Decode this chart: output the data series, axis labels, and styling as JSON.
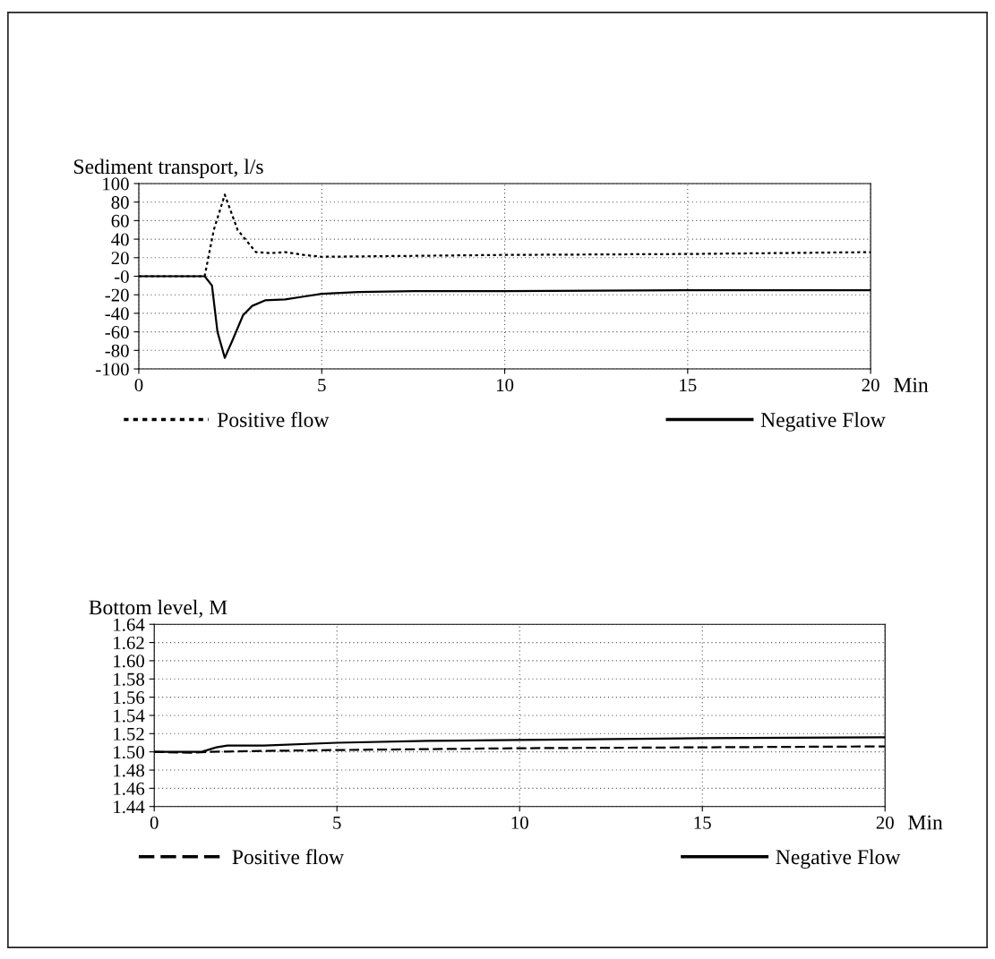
{
  "chart_data": [
    {
      "type": "line",
      "title": "Sediment transport, l/s",
      "xlabel": "Min",
      "xlim": [
        0,
        20
      ],
      "xticks": [
        0,
        5,
        10,
        15,
        20
      ],
      "ylim": [
        -100,
        100
      ],
      "yticks": [
        -100,
        -80,
        -60,
        -40,
        -20,
        {
          "value": 0,
          "label": "-0"
        },
        20,
        40,
        60,
        80,
        100
      ],
      "grid": true,
      "legend": "bottom",
      "series": [
        {
          "name": "Positive flow",
          "color": "#000000",
          "line_style": "dotted",
          "x": [
            0,
            1.8,
            2.05,
            2.35,
            2.7,
            3.2,
            3.6,
            4.0,
            4.5,
            5.0,
            7.5,
            10,
            15,
            20
          ],
          "values": [
            0,
            0,
            50,
            88,
            50,
            26,
            25,
            26,
            23,
            21,
            22,
            23,
            24,
            26
          ]
        },
        {
          "name": "Negative Flow",
          "color": "#000000",
          "line_style": "solid",
          "x": [
            0,
            1.8,
            2.0,
            2.15,
            2.35,
            2.55,
            2.85,
            3.1,
            3.45,
            4.0,
            4.5,
            5.0,
            6.0,
            7.5,
            10,
            15,
            20
          ],
          "values": [
            0,
            0,
            -10,
            -60,
            -88,
            -70,
            -42,
            -32,
            -26,
            -25,
            -22,
            -19,
            -17,
            -16,
            -16,
            -15,
            -15
          ]
        }
      ]
    },
    {
      "type": "line",
      "title": "Bottom level, M",
      "xlabel": "Min",
      "xlim": [
        0,
        20
      ],
      "xticks": [
        0,
        5,
        10,
        15,
        20
      ],
      "ylim": [
        1.44,
        1.64
      ],
      "yticks": [
        1.44,
        1.46,
        1.48,
        {
          "value": 1.5,
          "label": "1.50"
        },
        1.52,
        1.54,
        1.56,
        1.58,
        {
          "value": 1.6,
          "label": "1.60"
        },
        1.62,
        1.64
      ],
      "grid": true,
      "legend": "bottom",
      "series": [
        {
          "name": "Positive flow",
          "color": "#000000",
          "line_style": "dashed",
          "x": [
            0,
            1.0,
            1.5,
            3.0,
            5.0,
            10,
            15,
            20
          ],
          "values": [
            1.5,
            1.499,
            1.5,
            1.501,
            1.502,
            1.504,
            1.505,
            1.506
          ]
        },
        {
          "name": "Negative Flow",
          "color": "#000000",
          "line_style": "solid",
          "x": [
            0,
            0.6,
            1.3,
            1.7,
            2.0,
            3.0,
            5.0,
            7.5,
            10,
            15,
            20
          ],
          "values": [
            1.5,
            1.5,
            1.5,
            1.505,
            1.507,
            1.507,
            1.51,
            1.512,
            1.513,
            1.515,
            1.516
          ]
        }
      ]
    }
  ]
}
